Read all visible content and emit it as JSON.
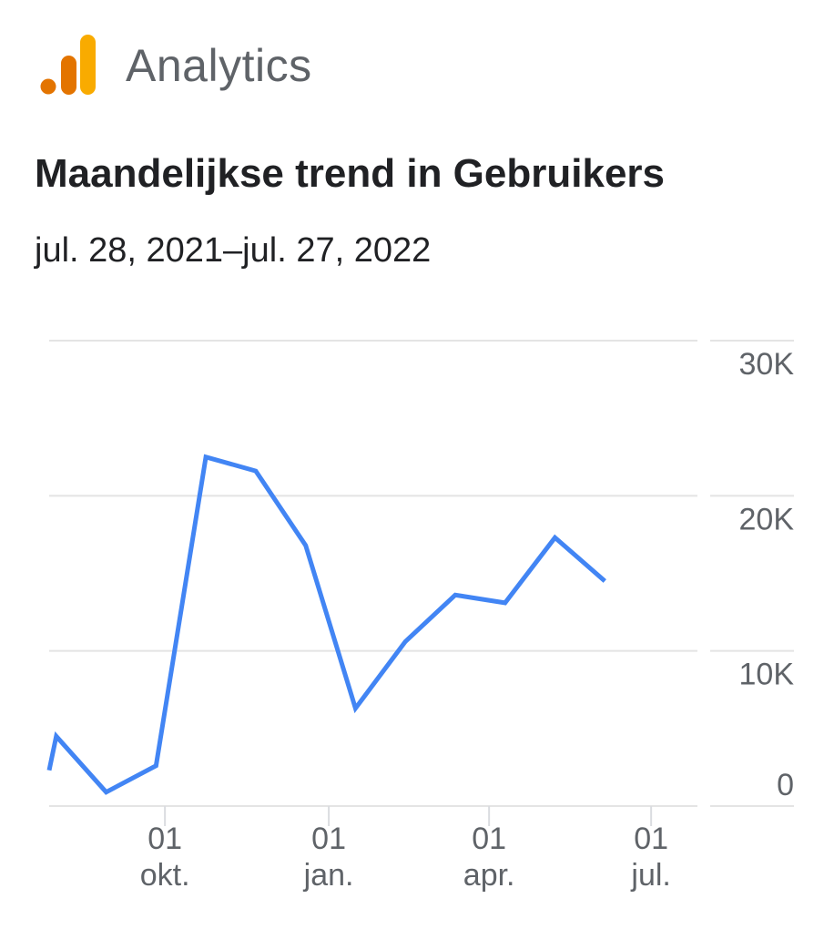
{
  "header": {
    "app_name": "Analytics",
    "logo_icon": "analytics-bars-icon",
    "logo_colors": [
      "#E37400",
      "#E37400",
      "#F9AB00"
    ]
  },
  "title": "Maandelijkse trend in Gebruikers",
  "date_range": "jul. 28, 2021–jul. 27, 2022",
  "chart_data": {
    "type": "line",
    "title": "Maandelijkse trend in Gebruikers",
    "xlabel": "",
    "ylabel": "",
    "ylim": [
      0,
      30000
    ],
    "y_ticks": [
      {
        "value": 0,
        "label": "0"
      },
      {
        "value": 10000,
        "label": "10K"
      },
      {
        "value": 20000,
        "label": "20K"
      },
      {
        "value": 30000,
        "label": "30K"
      }
    ],
    "x_ticks": [
      {
        "date": "2021-10-01",
        "day": "01",
        "month": "okt."
      },
      {
        "date": "2022-01-01",
        "day": "01",
        "month": "jan."
      },
      {
        "date": "2022-04-01",
        "day": "01",
        "month": "apr."
      },
      {
        "date": "2022-07-01",
        "day": "01",
        "month": "jul."
      }
    ],
    "x_range": [
      "2021-07-28",
      "2022-07-27"
    ],
    "grid": true,
    "line_color": "#4285F4",
    "series": [
      {
        "name": "",
        "points": [
          {
            "x": "2021-07-28",
            "y": 2300
          },
          {
            "x": "2021-08-01",
            "y": 4500
          },
          {
            "x": "2021-08-29",
            "y": 900
          },
          {
            "x": "2021-09-26",
            "y": 2600
          },
          {
            "x": "2021-10-24",
            "y": 22500
          },
          {
            "x": "2021-11-21",
            "y": 21600
          },
          {
            "x": "2021-12-19",
            "y": 16800
          },
          {
            "x": "2022-01-16",
            "y": 6300
          },
          {
            "x": "2022-02-13",
            "y": 10600
          },
          {
            "x": "2022-03-13",
            "y": 13600
          },
          {
            "x": "2022-04-10",
            "y": 13100
          },
          {
            "x": "2022-05-08",
            "y": 17300
          },
          {
            "x": "2022-06-05",
            "y": 14500
          }
        ]
      }
    ]
  }
}
